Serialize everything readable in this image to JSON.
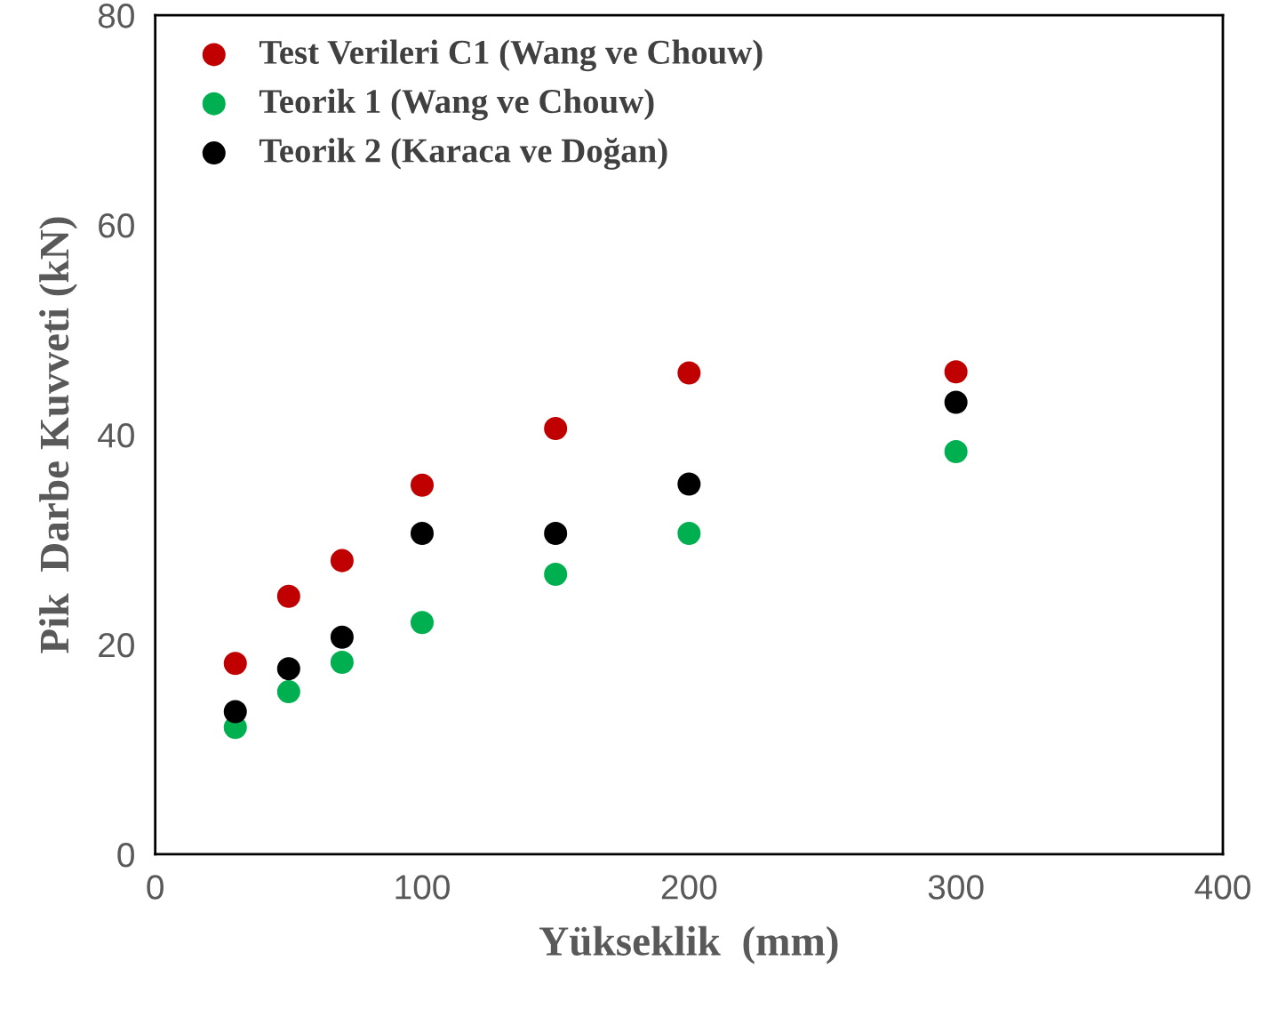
{
  "chart_data": {
    "type": "scatter",
    "xlabel": "Yükseklik  (mm)",
    "ylabel": "Pik  Darbe Kuvveti (kN)",
    "x": [
      30,
      50,
      70,
      100,
      150,
      200,
      300
    ],
    "series": [
      {
        "name": "Test Verileri C1 (Wang ve Chouw)",
        "color": "#c00000",
        "values": [
          18.2,
          24.6,
          28.0,
          35.2,
          40.6,
          45.9,
          46.0
        ]
      },
      {
        "name": "Teorik 1 (Wang ve Chouw)",
        "color": "#00b050",
        "values": [
          12.1,
          15.5,
          18.3,
          22.1,
          26.7,
          30.6,
          38.4
        ]
      },
      {
        "name": "Teorik 2 (Karaca ve Doğan)",
        "color": "#000000",
        "values": [
          13.6,
          17.7,
          20.7,
          30.6,
          30.6,
          35.3,
          43.1
        ]
      }
    ],
    "xlim": [
      0,
      400
    ],
    "xticks": [
      0,
      100,
      200,
      300,
      400
    ],
    "ylim": [
      0,
      80
    ],
    "yticks": [
      0,
      20,
      40,
      60,
      80
    ],
    "marker": "circle",
    "legend": "top left",
    "grid": false
  }
}
